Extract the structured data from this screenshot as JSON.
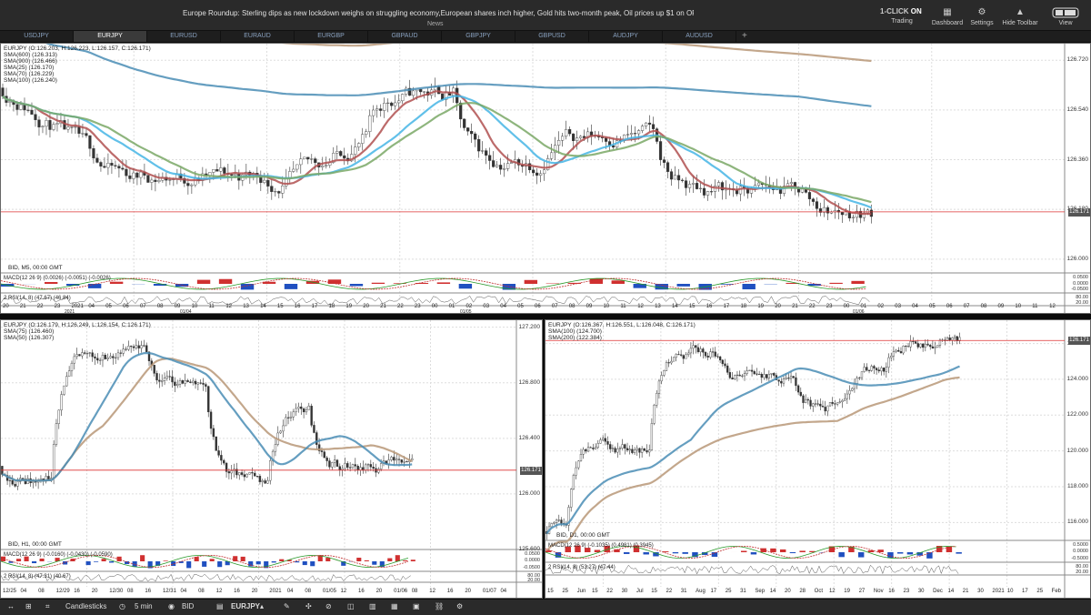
{
  "header": {
    "news_text": "Europe Roundup: Sterling dips as new lockdown weighs on struggling economy,European shares inch higher, Gold hits two-month peak, Oil prices up $1 on OPEC output cc",
    "news_label": "News",
    "oneclick_prefix": "1-CLICK",
    "oneclick_state": "ON",
    "buttons": [
      {
        "label": "Trading",
        "icon": "trading-icon"
      },
      {
        "label": "Dashboard",
        "icon": "dashboard-icon"
      },
      {
        "label": "Settings",
        "icon": "gear-icon"
      },
      {
        "label": "Hide Toolbar",
        "icon": "hide-toolbar-icon"
      },
      {
        "label": "View",
        "icon": "view-icon"
      }
    ]
  },
  "tabs": [
    "USDJPY",
    "EURJPY",
    "EURUSD",
    "EURAUD",
    "EURGBP",
    "GBPAUD",
    "GBPJPY",
    "GBPUSD",
    "AUDJPY",
    "AUDUSD",
    "+"
  ],
  "active_tab": "EURJPY",
  "charts": [
    {
      "id": "m5",
      "symbol_line": "EURJPY (O:126.203, H:126.223, L:126.157, C:126.171)",
      "indicators": [
        "SMA(600) (126.313)",
        "SMA(900) (126.466)",
        "SMA(25) (126.170)",
        "SMA(70) (126.229)",
        "SMA(100) (126.240)"
      ],
      "price_labels": [
        "126.720",
        "126.540",
        "126.360",
        "126.180",
        "126.000"
      ],
      "current_price": "126.171",
      "bid_label": "BID, M5, 00:00 GMT",
      "macd_label": "MACD(12 26 9) (0.0026) (-0.0051) (-0.0026)",
      "macd_scale": [
        "0.0500",
        "0.0000",
        "-0.0500"
      ],
      "rsi_label": "2 RSI(14, 8) (47.67) (46.84)",
      "rsi_scale": [
        "80.00",
        "20.00"
      ],
      "time_labels": [
        "20",
        "21",
        "22",
        "23",
        "2021",
        "04",
        "05",
        "06",
        "07",
        "08",
        "09",
        "10",
        "11",
        "12",
        "13",
        "14",
        "15",
        "16",
        "17",
        "18",
        "19",
        "20",
        "21",
        "22",
        "23",
        "00",
        "01",
        "02",
        "03",
        "04",
        "05",
        "06",
        "07",
        "08",
        "09",
        "10",
        "11",
        "12",
        "13",
        "14",
        "15",
        "16",
        "17",
        "18",
        "19",
        "20",
        "21",
        "22",
        "23",
        "00",
        "01",
        "02",
        "03",
        "04",
        "05",
        "06",
        "07",
        "08",
        "09",
        "10",
        "11",
        "12"
      ],
      "date_labels": [
        "2021",
        "01/04",
        "01/05",
        "01/06"
      ],
      "chart_data": {
        "type": "candlestick",
        "timeframe": "M5",
        "ylim": [
          125.95,
          126.78
        ],
        "series": [
          {
            "name": "SMA(600)",
            "last": 126.313,
            "color": "#4a8db5"
          },
          {
            "name": "SMA(900)",
            "last": 126.466,
            "color": "#b89878"
          },
          {
            "name": "SMA(25)",
            "last": 126.17,
            "color": "#b05050"
          },
          {
            "name": "SMA(70)",
            "last": 126.229,
            "color": "#45b5e5"
          },
          {
            "name": "SMA(100)",
            "last": 126.24,
            "color": "#7aa866"
          }
        ]
      }
    },
    {
      "id": "h1",
      "symbol_line": "EURJPY (O:126.179, H:126.249, L:126.154, C:126.171)",
      "indicators": [
        "SMA(75) (126.460)",
        "SMA(50) (126.307)"
      ],
      "price_labels": [
        "127.200",
        "126.800",
        "126.400",
        "126.000",
        "125.600"
      ],
      "current_price": "126.171",
      "bid_label": "BID, H1, 00:00 GMT",
      "macd_label": "MACD(12 26 9) (-0.0160) (-0.0430) (-0.0590)",
      "macd_scale": [
        "0.0500",
        "0.0000",
        "-0.0500"
      ],
      "rsi_label": "2 RSI(14, 8) (47.31) (40.67)",
      "rsi_scale": [
        "80.00",
        "20.00"
      ],
      "time_labels": [
        "12/25",
        "04",
        "08",
        "12/29",
        "16",
        "20",
        "12/30",
        "08",
        "16",
        "12/31",
        "04",
        "08",
        "12",
        "16",
        "20",
        "2021",
        "04",
        "08",
        "01/05",
        "12",
        "16",
        "20",
        "01/06",
        "08",
        "12",
        "16",
        "20",
        "01/07",
        "04"
      ],
      "chart_data": {
        "type": "candlestick",
        "timeframe": "H1",
        "ylim": [
          125.6,
          127.25
        ],
        "series": [
          {
            "name": "SMA(75)",
            "last": 126.46,
            "color": "#b89878"
          },
          {
            "name": "SMA(50)",
            "last": 126.307,
            "color": "#4a8db5"
          }
        ]
      }
    },
    {
      "id": "d1",
      "symbol_line": "EURJPY (O:126.367, H:126.551, L:126.048, C:126.171)",
      "indicators": [
        "SMA(100) (124.700)",
        "SMA(200) (122.384)"
      ],
      "price_labels": [
        "126.000",
        "124.000",
        "122.000",
        "120.000",
        "118.000",
        "116.000"
      ],
      "current_price": "126.171",
      "bid_label": "BID, D1, 00:00 GMT",
      "macd_label": "MACD(12 26 9) (-0.1035) (0.4981) (0.3945)",
      "macd_scale": [
        "0.5000",
        "0.0000",
        "-0.5000"
      ],
      "rsi_label": "2 RSI(14, 8) (53.27) (47.44)",
      "rsi_scale": [
        "80.00",
        "20.00"
      ],
      "time_labels": [
        "15",
        "25",
        "Jun",
        "15",
        "22",
        "30",
        "Jul",
        "15",
        "22",
        "31",
        "Aug",
        "17",
        "25",
        "31",
        "Sep",
        "14",
        "20",
        "28",
        "Oct",
        "12",
        "19",
        "27",
        "Nov",
        "16",
        "23",
        "30",
        "Dec",
        "14",
        "21",
        "30",
        "2021",
        "10",
        "17",
        "25",
        "Feb"
      ],
      "chart_data": {
        "type": "candlestick",
        "timeframe": "D1",
        "ylim": [
          115,
          127.3
        ],
        "series": [
          {
            "name": "SMA(100)",
            "last": 124.7,
            "color": "#4a8db5"
          },
          {
            "name": "SMA(200)",
            "last": 122.384,
            "color": "#b89878"
          }
        ]
      }
    }
  ],
  "toolbar": {
    "chart_type": "Candlesticks",
    "interval": "5 min",
    "price_side": "BID",
    "symbol": "EURJPY"
  }
}
